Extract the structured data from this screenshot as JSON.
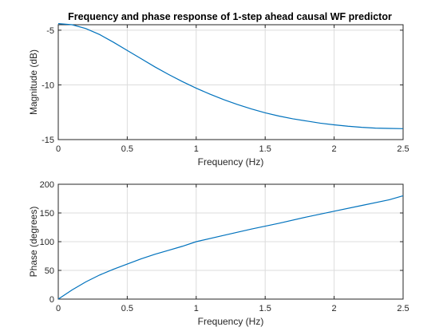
{
  "chart_data": [
    {
      "type": "line",
      "title": "Frequency and phase response of 1-step ahead causal WF predictor",
      "xlabel": "Frequency (Hz)",
      "ylabel": "Magnitude (dB)",
      "xlim": [
        0,
        2.5
      ],
      "ylim": [
        -15,
        -4.5
      ],
      "xticks": [
        0,
        0.5,
        1,
        1.5,
        2,
        2.5
      ],
      "xtick_labels": [
        "0",
        "0.5",
        "1",
        "1.5",
        "2",
        "2.5"
      ],
      "yticks": [
        -15,
        -10,
        -5
      ],
      "ytick_labels": [
        "-15",
        "-10",
        "-5"
      ],
      "grid": true,
      "color": "#0072bd",
      "series": [
        {
          "x": [
            0,
            0.1,
            0.2,
            0.3,
            0.4,
            0.5,
            0.6,
            0.7,
            0.8,
            0.9,
            1.0,
            1.1,
            1.2,
            1.3,
            1.4,
            1.5,
            1.6,
            1.7,
            1.8,
            1.9,
            2.0,
            2.1,
            2.2,
            2.3,
            2.4,
            2.5
          ],
          "y": [
            -4.4,
            -4.5,
            -4.85,
            -5.4,
            -6.1,
            -6.85,
            -7.6,
            -8.35,
            -9.05,
            -9.7,
            -10.3,
            -10.85,
            -11.35,
            -11.8,
            -12.2,
            -12.55,
            -12.85,
            -13.1,
            -13.3,
            -13.5,
            -13.65,
            -13.78,
            -13.88,
            -13.95,
            -13.98,
            -14.0
          ]
        }
      ]
    },
    {
      "type": "line",
      "title": "",
      "xlabel": "Frequency (Hz)",
      "ylabel": "Phase (degrees)",
      "xlim": [
        0,
        2.5
      ],
      "ylim": [
        0,
        200
      ],
      "xticks": [
        0,
        0.5,
        1,
        1.5,
        2,
        2.5
      ],
      "xtick_labels": [
        "0",
        "0.5",
        "1",
        "1.5",
        "2",
        "2.5"
      ],
      "yticks": [
        0,
        50,
        100,
        150,
        200
      ],
      "ytick_labels": [
        "0",
        "50",
        "100",
        "150",
        "200"
      ],
      "grid": true,
      "color": "#0072bd",
      "series": [
        {
          "x": [
            0,
            0.1,
            0.2,
            0.3,
            0.4,
            0.5,
            0.6,
            0.7,
            0.8,
            0.9,
            1.0,
            1.2,
            1.4,
            1.6,
            1.8,
            2.0,
            2.2,
            2.4,
            2.5
          ],
          "y": [
            0,
            16,
            30,
            42,
            52,
            61,
            70,
            78,
            85,
            92,
            100,
            111,
            122,
            132,
            143,
            153,
            163,
            173,
            180
          ]
        }
      ]
    }
  ]
}
